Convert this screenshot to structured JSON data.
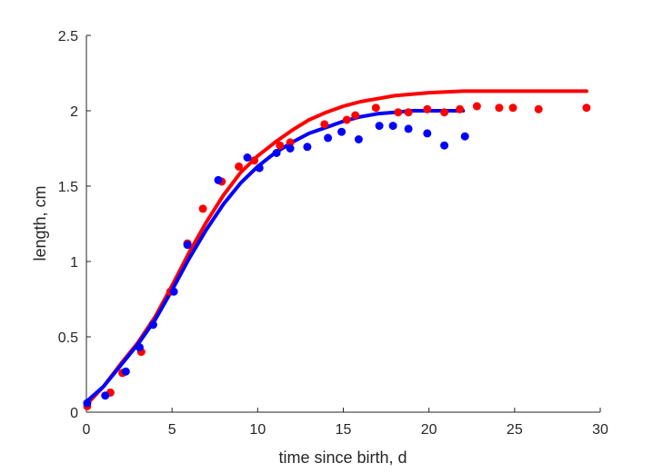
{
  "chart_data": {
    "type": "scatter",
    "title": "",
    "xlabel": "time since birth, d",
    "ylabel": "length, cm",
    "xlim": [
      0,
      30
    ],
    "ylim": [
      0,
      2.5
    ],
    "xticks": [
      0,
      5,
      10,
      15,
      20,
      25,
      30
    ],
    "xtick_labels": [
      "0",
      "5",
      "10",
      "15",
      "20",
      "25",
      "30"
    ],
    "yticks": [
      0,
      0.5,
      1,
      1.5,
      2,
      2.5
    ],
    "ytick_labels": [
      "0",
      "0.5",
      "1",
      "1.5",
      "2",
      "2.5"
    ],
    "grid": false,
    "legend": "none",
    "series": [
      {
        "color": "#ff0000",
        "points": {
          "x": [
            0.05,
            1.4,
            2.1,
            3.2,
            4.9,
            5.9,
            6.8,
            7.9,
            8.9,
            9.8,
            11.3,
            11.9,
            13.9,
            15.2,
            15.7,
            16.9,
            18.2,
            18.8,
            19.9,
            20.9,
            21.8,
            22.8,
            24.1,
            24.9,
            26.4,
            29.2
          ],
          "y": [
            0.04,
            0.13,
            0.26,
            0.4,
            0.8,
            1.12,
            1.35,
            1.53,
            1.63,
            1.67,
            1.77,
            1.79,
            1.91,
            1.94,
            1.97,
            2.02,
            1.99,
            1.99,
            2.01,
            1.99,
            2.01,
            2.03,
            2.02,
            2.02,
            2.01,
            2.02
          ]
        },
        "curve": {
          "x": [
            0,
            1,
            2,
            3,
            4,
            5,
            6,
            7,
            8,
            9,
            10,
            11,
            12,
            13,
            14,
            15,
            16,
            17,
            18,
            19,
            20,
            21,
            22,
            23,
            24,
            25,
            26,
            27,
            28,
            29.2
          ],
          "y": [
            0.05,
            0.17,
            0.32,
            0.46,
            0.63,
            0.84,
            1.06,
            1.26,
            1.44,
            1.59,
            1.7,
            1.79,
            1.87,
            1.94,
            1.99,
            2.03,
            2.06,
            2.08,
            2.1,
            2.11,
            2.12,
            2.125,
            2.13,
            2.13,
            2.13,
            2.13,
            2.13,
            2.13,
            2.13,
            2.13
          ]
        }
      },
      {
        "color": "#0000ff",
        "points": {
          "x": [
            0.05,
            1.1,
            2.3,
            3.1,
            3.9,
            5.1,
            5.9,
            7.7,
            9.4,
            10.1,
            11.1,
            11.9,
            12.9,
            14.1,
            14.9,
            15.9,
            17.1,
            17.9,
            18.8,
            19.9,
            20.9,
            22.1
          ],
          "y": [
            0.06,
            0.11,
            0.27,
            0.43,
            0.58,
            0.8,
            1.11,
            1.54,
            1.69,
            1.62,
            1.72,
            1.75,
            1.76,
            1.82,
            1.86,
            1.81,
            1.9,
            1.9,
            1.88,
            1.85,
            1.77,
            1.83
          ]
        },
        "curve": {
          "x": [
            0,
            1,
            2,
            3,
            4,
            5,
            6,
            7,
            8,
            9,
            10,
            11,
            12,
            13,
            14,
            15,
            16,
            17,
            18,
            19,
            20,
            21,
            22
          ],
          "y": [
            0.07,
            0.17,
            0.31,
            0.45,
            0.61,
            0.81,
            1.02,
            1.21,
            1.38,
            1.52,
            1.63,
            1.72,
            1.79,
            1.85,
            1.89,
            1.93,
            1.96,
            1.98,
            1.99,
            2.0,
            2.0,
            2.0,
            2.0
          ]
        }
      }
    ]
  }
}
